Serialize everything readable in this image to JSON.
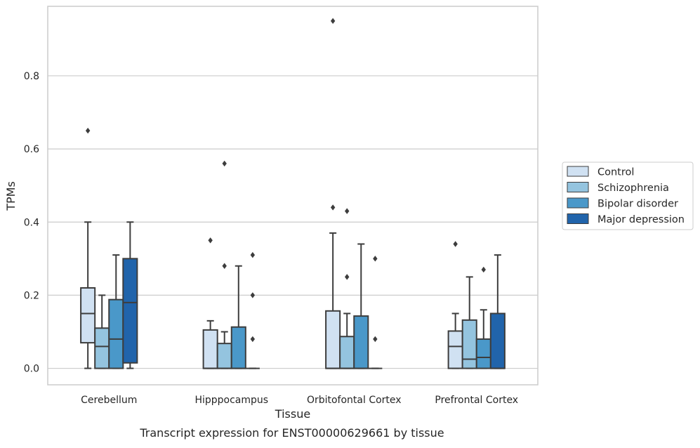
{
  "caption": "Transcript expression for ENST00000629661 by tissue",
  "chart_data": {
    "type": "box",
    "title": "",
    "xlabel": "Tissue",
    "ylabel": "TPMs",
    "ylim": [
      -0.045,
      0.99
    ],
    "yticks": [
      0.0,
      0.2,
      0.4,
      0.6,
      0.8
    ],
    "ytick_labels": [
      "0.0",
      "0.2",
      "0.4",
      "0.6",
      "0.8"
    ],
    "grid": "horizontal",
    "legend_position": "right, outside plot",
    "categories": [
      "Cerebellum",
      "Hipppocampus",
      "Orbitofontal Cortex",
      "Prefrontal Cortex"
    ],
    "series": [
      {
        "name": "Control",
        "color": "#d0e1f2",
        "boxes": [
          {
            "whislo": 0.0,
            "q1": 0.07,
            "median": 0.15,
            "q3": 0.22,
            "whishi": 0.4,
            "fliers": [
              0.65
            ]
          },
          {
            "whislo": 0.0,
            "q1": 0.0,
            "median": 0.0,
            "q3": 0.105,
            "whishi": 0.13,
            "fliers": [
              0.35
            ]
          },
          {
            "whislo": 0.0,
            "q1": 0.0,
            "median": 0.0,
            "q3": 0.157,
            "whishi": 0.37,
            "fliers": [
              0.44,
              0.95
            ]
          },
          {
            "whislo": 0.0,
            "q1": 0.0,
            "median": 0.06,
            "q3": 0.102,
            "whishi": 0.15,
            "fliers": [
              0.34
            ]
          }
        ]
      },
      {
        "name": "Schizophrenia",
        "color": "#94c4df",
        "boxes": [
          {
            "whislo": 0.0,
            "q1": 0.0,
            "median": 0.06,
            "q3": 0.11,
            "whishi": 0.2,
            "fliers": []
          },
          {
            "whislo": 0.0,
            "q1": 0.0,
            "median": 0.0,
            "q3": 0.068,
            "whishi": 0.1,
            "fliers": [
              0.28,
              0.56
            ]
          },
          {
            "whislo": 0.0,
            "q1": 0.0,
            "median": 0.0,
            "q3": 0.087,
            "whishi": 0.15,
            "fliers": [
              0.25,
              0.43
            ]
          },
          {
            "whislo": 0.0,
            "q1": 0.0,
            "median": 0.025,
            "q3": 0.132,
            "whishi": 0.25,
            "fliers": []
          }
        ]
      },
      {
        "name": "Bipolar disorder",
        "color": "#4a98c9",
        "boxes": [
          {
            "whislo": 0.0,
            "q1": 0.0,
            "median": 0.08,
            "q3": 0.188,
            "whishi": 0.31,
            "fliers": []
          },
          {
            "whislo": 0.0,
            "q1": 0.0,
            "median": 0.0,
            "q3": 0.113,
            "whishi": 0.28,
            "fliers": []
          },
          {
            "whislo": 0.0,
            "q1": 0.0,
            "median": 0.0,
            "q3": 0.143,
            "whishi": 0.34,
            "fliers": []
          },
          {
            "whislo": 0.0,
            "q1": 0.0,
            "median": 0.03,
            "q3": 0.08,
            "whishi": 0.16,
            "fliers": [
              0.27
            ]
          }
        ]
      },
      {
        "name": "Major depression",
        "color": "#2164ab",
        "boxes": [
          {
            "whislo": 0.0,
            "q1": 0.015,
            "median": 0.18,
            "q3": 0.3,
            "whishi": 0.4,
            "fliers": []
          },
          {
            "whislo": 0.0,
            "q1": 0.0,
            "median": 0.0,
            "q3": 0.0,
            "whishi": 0.0,
            "fliers": [
              0.08,
              0.2,
              0.31
            ]
          },
          {
            "whislo": 0.0,
            "q1": 0.0,
            "median": 0.0,
            "q3": 0.0,
            "whishi": 0.0,
            "fliers": [
              0.08,
              0.3
            ]
          },
          {
            "whislo": 0.0,
            "q1": 0.0,
            "median": 0.0,
            "q3": 0.15,
            "whishi": 0.31,
            "fliers": []
          }
        ]
      }
    ]
  }
}
